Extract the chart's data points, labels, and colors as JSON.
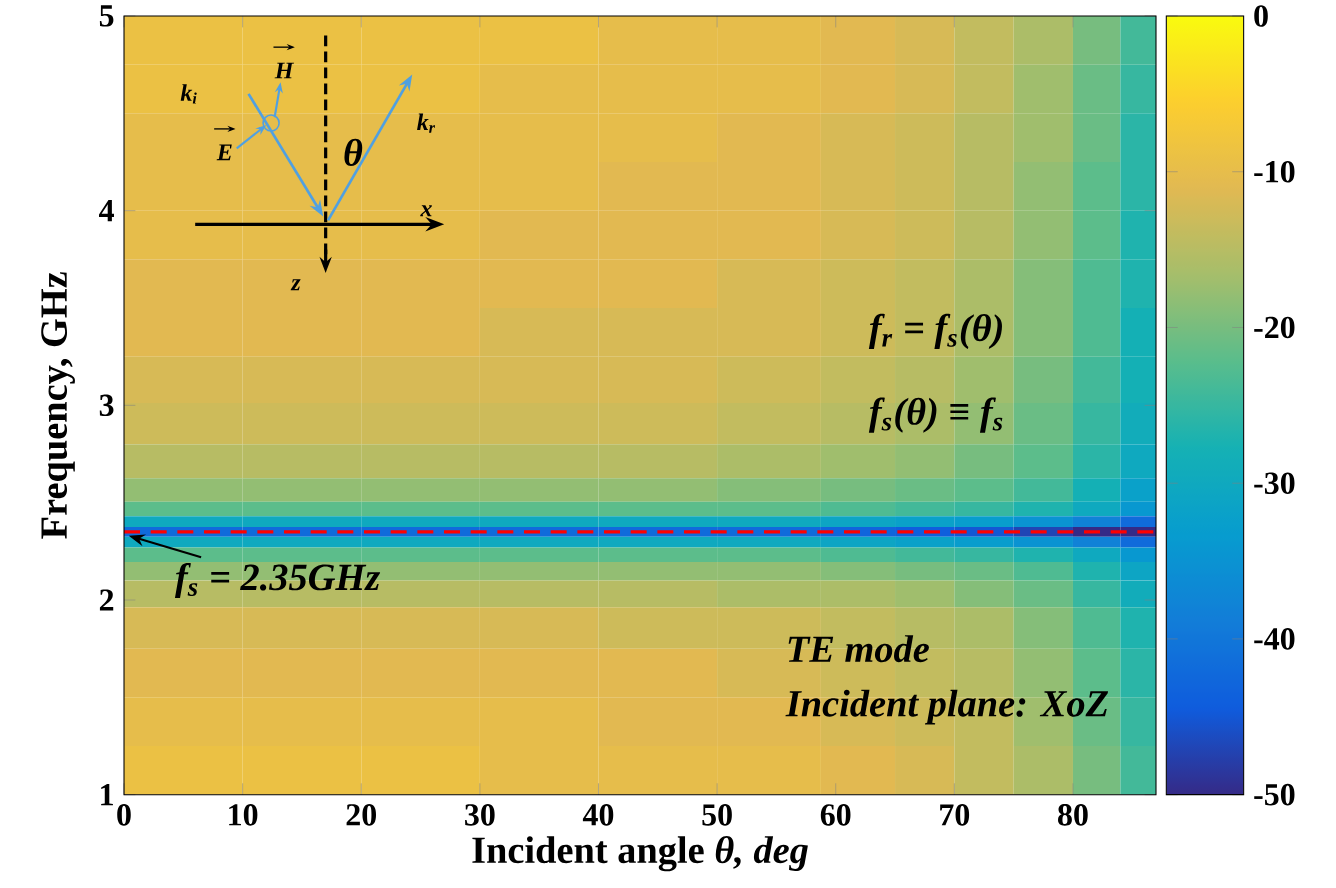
{
  "chart_data": {
    "type": "heatmap",
    "xlabel": "Incident angle *θ, deg*",
    "ylabel": "Frequency, GHz",
    "x": [
      5,
      15,
      25,
      35,
      45,
      55,
      62.5,
      67.5,
      72.5,
      77.5,
      82.5,
      85.5
    ],
    "y": [
      4.875,
      4.625,
      4.375,
      4.125,
      3.875,
      3.625,
      3.375,
      3.125,
      2.9,
      2.7,
      2.55,
      2.46,
      2.4,
      2.35,
      2.3,
      2.24,
      2.15,
      2.05,
      1.875,
      1.625,
      1.375,
      1.125
    ],
    "cells": [
      [
        -9,
        -9,
        -9,
        -9,
        -10,
        -10,
        -11,
        -12,
        -14,
        -16,
        -20,
        -24
      ],
      [
        -9,
        -9,
        -9,
        -10,
        -10,
        -10,
        -11,
        -12,
        -14,
        -17,
        -21,
        -25
      ],
      [
        -10,
        -10,
        -10,
        -10,
        -10,
        -11,
        -12,
        -13,
        -15,
        -17,
        -21,
        -26
      ],
      [
        -10,
        -10,
        -10,
        -10,
        -11,
        -11,
        -12,
        -13,
        -15,
        -18,
        -22,
        -26
      ],
      [
        -10,
        -10,
        -10,
        -11,
        -11,
        -11,
        -12,
        -13,
        -15,
        -18,
        -22,
        -27
      ],
      [
        -11,
        -11,
        -11,
        -11,
        -11,
        -12,
        -13,
        -14,
        -16,
        -19,
        -23,
        -27
      ],
      [
        -11,
        -11,
        -11,
        -12,
        -12,
        -12,
        -13,
        -14,
        -16,
        -19,
        -23,
        -28
      ],
      [
        -12,
        -12,
        -12,
        -12,
        -12,
        -13,
        -14,
        -15,
        -17,
        -20,
        -24,
        -28
      ],
      [
        -13,
        -13,
        -13,
        -13,
        -13,
        -14,
        -15,
        -16,
        -18,
        -21,
        -25,
        -29
      ],
      [
        -15,
        -15,
        -15,
        -15,
        -15,
        -16,
        -17,
        -18,
        -20,
        -22,
        -26,
        -30
      ],
      [
        -18,
        -18,
        -18,
        -18,
        -18,
        -19,
        -20,
        -21,
        -22,
        -24,
        -28,
        -32
      ],
      [
        -22,
        -22,
        -22,
        -22,
        -22,
        -22,
        -23,
        -24,
        -25,
        -27,
        -30,
        -34
      ],
      [
        -30,
        -30,
        -30,
        -30,
        -30,
        -30,
        -31,
        -32,
        -33,
        -35,
        -38,
        -42
      ],
      [
        -42,
        -42,
        -42,
        -42,
        -42,
        -42,
        -43,
        -44,
        -45,
        -47,
        -50,
        -50
      ],
      [
        -30,
        -30,
        -30,
        -30,
        -30,
        -30,
        -31,
        -32,
        -33,
        -35,
        -38,
        -42
      ],
      [
        -22,
        -22,
        -22,
        -22,
        -22,
        -22,
        -23,
        -24,
        -25,
        -27,
        -30,
        -34
      ],
      [
        -18,
        -18,
        -18,
        -18,
        -18,
        -18,
        -19,
        -20,
        -21,
        -23,
        -27,
        -31
      ],
      [
        -15,
        -15,
        -15,
        -15,
        -15,
        -16,
        -16,
        -17,
        -19,
        -21,
        -25,
        -29
      ],
      [
        -12,
        -12,
        -12,
        -12,
        -13,
        -13,
        -14,
        -15,
        -16,
        -19,
        -23,
        -27
      ],
      [
        -11,
        -11,
        -11,
        -11,
        -11,
        -12,
        -13,
        -14,
        -15,
        -18,
        -22,
        -26
      ],
      [
        -10,
        -10,
        -10,
        -10,
        -11,
        -11,
        -12,
        -13,
        -14,
        -17,
        -21,
        -25
      ],
      [
        -9,
        -9,
        -9,
        -10,
        -10,
        -10,
        -11,
        -12,
        -14,
        -16,
        -20,
        -24
      ]
    ],
    "clim": [
      -50,
      0
    ],
    "cticks": [
      -50,
      -40,
      -30,
      -20,
      -10,
      0
    ],
    "xlim": [
      0,
      87
    ],
    "ylim": [
      1,
      5
    ],
    "xticks": [
      0,
      10,
      20,
      30,
      40,
      50,
      60,
      70,
      80
    ],
    "yticks": [
      1,
      2,
      3,
      4,
      5
    ],
    "ref_lines": [
      {
        "axis": "y",
        "value": 2.35,
        "color": "#ff0000",
        "line_style": "dashed"
      }
    ],
    "annotations": [
      "f$_{r}$ = f$_{s}$(θ)",
      "f$_{s}$(θ) ≡ f$_{s}$",
      {
        "text": "f$_{s}$ =  2.35GHz",
        "x": 0,
        "y": 2.35
      },
      "TE mode",
      "Incident plane: XoZ",
      "k$_{i}$",
      "H",
      "E",
      "θ",
      "k$_{r}$",
      "x",
      "z"
    ]
  }
}
